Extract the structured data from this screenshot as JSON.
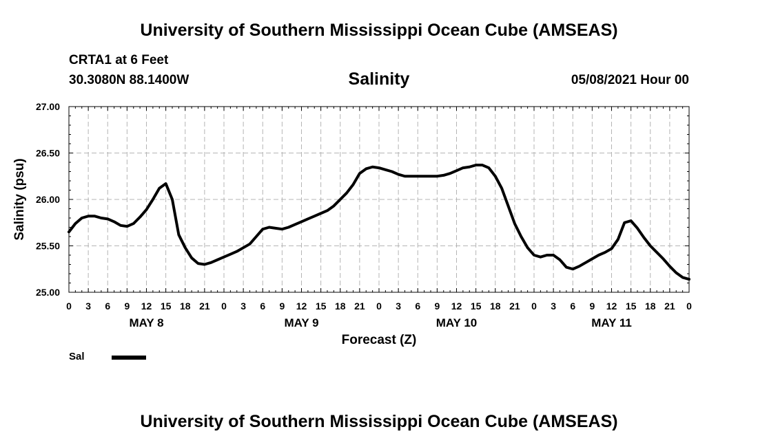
{
  "header": {
    "title": "University of Southern Mississippi Ocean Cube (AMSEAS)",
    "station": "CRTA1 at 6 Feet",
    "coords": "30.3080N  88.1400W",
    "parameter": "Salinity",
    "datetime": "05/08/2021 Hour 00"
  },
  "footer": {
    "title": "University of Southern Mississippi Ocean Cube (AMSEAS)"
  },
  "legend": {
    "label": "Sal",
    "color": "#000000"
  },
  "chart_data": {
    "type": "line",
    "title": "Salinity",
    "xlabel": "Forecast (Z)",
    "ylabel": "Salinity (psu)",
    "xlim": [
      0,
      96
    ],
    "ylim": [
      25.0,
      27.0
    ],
    "grid": true,
    "x_ticks": [
      0,
      3,
      6,
      9,
      12,
      15,
      18,
      21,
      24,
      27,
      30,
      33,
      36,
      39,
      42,
      45,
      48,
      51,
      54,
      57,
      60,
      63,
      66,
      69,
      72,
      75,
      78,
      81,
      84,
      87,
      90,
      93,
      96
    ],
    "x_tick_labels": [
      "0",
      "3",
      "6",
      "9",
      "12",
      "15",
      "18",
      "21",
      "0",
      "3",
      "6",
      "9",
      "12",
      "15",
      "18",
      "21",
      "0",
      "3",
      "6",
      "9",
      "12",
      "15",
      "18",
      "21",
      "0",
      "3",
      "6",
      "9",
      "12",
      "15",
      "18",
      "21",
      "0"
    ],
    "day_labels": [
      {
        "label": "MAY 8",
        "x": 12
      },
      {
        "label": "MAY 9",
        "x": 36
      },
      {
        "label": "MAY 10",
        "x": 60
      },
      {
        "label": "MAY 11",
        "x": 84
      }
    ],
    "y_ticks": [
      25.0,
      25.5,
      26.0,
      26.5,
      27.0
    ],
    "y_tick_labels": [
      "25.00",
      "25.50",
      "26.00",
      "26.50",
      "27.00"
    ],
    "series": [
      {
        "name": "Sal",
        "x": [
          0,
          1,
          2,
          3,
          4,
          5,
          6,
          7,
          8,
          9,
          10,
          11,
          12,
          13,
          14,
          15,
          16,
          17,
          18,
          19,
          20,
          21,
          22,
          23,
          24,
          25,
          26,
          27,
          28,
          29,
          30,
          31,
          32,
          33,
          34,
          35,
          36,
          37,
          38,
          39,
          40,
          41,
          42,
          43,
          44,
          45,
          46,
          47,
          48,
          49,
          50,
          51,
          52,
          53,
          54,
          55,
          56,
          57,
          58,
          59,
          60,
          61,
          62,
          63,
          64,
          65,
          66,
          67,
          68,
          69,
          70,
          71,
          72,
          73,
          74,
          75,
          76,
          77,
          78,
          79,
          80,
          81,
          82,
          83,
          84,
          85,
          86,
          87,
          88,
          89,
          90,
          91,
          92,
          93,
          94,
          95,
          96
        ],
        "y": [
          25.65,
          25.74,
          25.8,
          25.82,
          25.82,
          25.8,
          25.79,
          25.76,
          25.72,
          25.71,
          25.74,
          25.81,
          25.89,
          26.0,
          26.12,
          26.17,
          26.0,
          25.62,
          25.48,
          25.37,
          25.31,
          25.3,
          25.32,
          25.35,
          25.38,
          25.41,
          25.44,
          25.48,
          25.52,
          25.6,
          25.68,
          25.7,
          25.69,
          25.68,
          25.7,
          25.73,
          25.76,
          25.79,
          25.82,
          25.85,
          25.88,
          25.93,
          26.0,
          26.07,
          26.16,
          26.28,
          26.33,
          26.35,
          26.34,
          26.32,
          26.3,
          26.27,
          26.25,
          26.25,
          26.25,
          26.25,
          26.25,
          26.25,
          26.26,
          26.28,
          26.31,
          26.34,
          26.35,
          26.37,
          26.37,
          26.34,
          26.25,
          26.12,
          25.93,
          25.74,
          25.6,
          25.48,
          25.4,
          25.38,
          25.4,
          25.4,
          25.35,
          25.27,
          25.25,
          25.28,
          25.32,
          25.36,
          25.4,
          25.43,
          25.47,
          25.57,
          25.75,
          25.77,
          25.69,
          25.59,
          25.5,
          25.43,
          25.36,
          25.28,
          25.21,
          25.16,
          25.14
        ]
      }
    ]
  }
}
